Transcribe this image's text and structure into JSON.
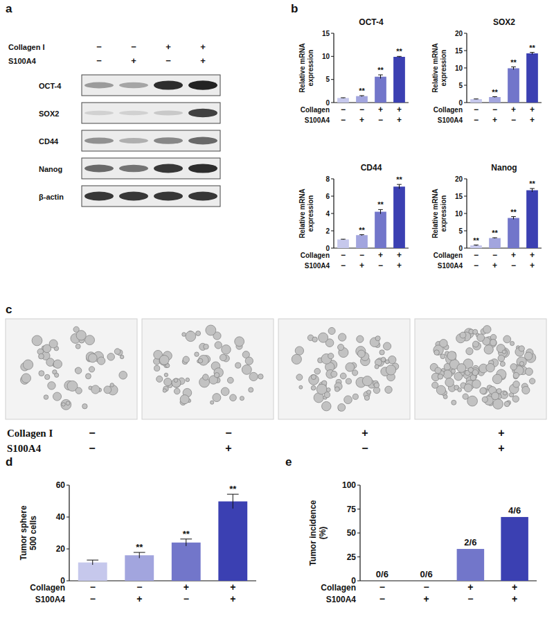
{
  "panel_labels": [
    "a",
    "b",
    "c",
    "d",
    "e"
  ],
  "blot": {
    "rows": [
      {
        "label": "Collagen I",
        "values": [
          "−",
          "−",
          "+",
          "+"
        ]
      },
      {
        "label": "S100A4",
        "values": [
          "−",
          "+",
          "−",
          "+"
        ]
      }
    ],
    "proteins": [
      "OCT-4",
      "SOX2",
      "CD44",
      "Nanog",
      "β-actin"
    ]
  },
  "images": {
    "rows": [
      {
        "label": "Collagen I",
        "values": [
          "−",
          "−",
          "+",
          "+"
        ]
      },
      {
        "label": "S100A4",
        "values": [
          "−",
          "+",
          "−",
          "+"
        ]
      }
    ]
  },
  "chart_data": [
    {
      "type": "bar",
      "title": "OCT-4",
      "y_label": "Relative mRNA expression",
      "categories": [
        null,
        null,
        null,
        null
      ],
      "values": [
        1.0,
        1.4,
        5.6,
        9.9
      ],
      "errors": [
        0.05,
        0.1,
        0.4,
        0.1
      ],
      "annotations": [
        null,
        "**",
        "**",
        "**"
      ],
      "x_rows": [
        {
          "label": "Collagen",
          "values": [
            "−",
            "−",
            "+",
            "+"
          ]
        },
        {
          "label": "S100A4",
          "values": [
            "−",
            "+",
            "−",
            "+"
          ]
        }
      ],
      "colors": [
        "#c6c8ec",
        "#a2a5de",
        "#7276ca",
        "#3b40b2"
      ],
      "ylim": [
        0,
        15
      ],
      "yticks": [
        0,
        5,
        10,
        15
      ]
    },
    {
      "type": "bar",
      "title": "SOX2",
      "y_label": "Relative mRNA expression",
      "categories": [
        null,
        null,
        null,
        null
      ],
      "values": [
        1.0,
        1.6,
        9.9,
        14.2
      ],
      "errors": [
        0.05,
        0.1,
        0.4,
        0.3
      ],
      "annotations": [
        null,
        "**",
        "**",
        "**"
      ],
      "x_rows": [
        {
          "label": "Collagen",
          "values": [
            "−",
            "−",
            "+",
            "+"
          ]
        },
        {
          "label": "S100A4",
          "values": [
            "−",
            "+",
            "−",
            "+"
          ]
        }
      ],
      "colors": [
        "#c6c8ec",
        "#a2a5de",
        "#7276ca",
        "#3b40b2"
      ],
      "ylim": [
        0,
        20
      ],
      "yticks": [
        0,
        5,
        10,
        15,
        20
      ]
    },
    {
      "type": "bar",
      "title": "CD44",
      "y_label": "Relative mRNA expression",
      "categories": [
        null,
        null,
        null,
        null
      ],
      "values": [
        1.0,
        1.5,
        4.2,
        7.1
      ],
      "errors": [
        0.03,
        0.05,
        0.25,
        0.25
      ],
      "annotations": [
        null,
        "**",
        "**",
        "**"
      ],
      "x_rows": [
        {
          "label": "Collagen",
          "values": [
            "−",
            "−",
            "+",
            "+"
          ]
        },
        {
          "label": "S100A4",
          "values": [
            "−",
            "+",
            "−",
            "+"
          ]
        }
      ],
      "colors": [
        "#c6c8ec",
        "#a2a5de",
        "#7276ca",
        "#3b40b2"
      ],
      "ylim": [
        0,
        8
      ],
      "yticks": [
        0,
        2,
        4,
        6,
        8
      ]
    },
    {
      "type": "bar",
      "title": "Nanog",
      "y_label": "Relative mRNA expression",
      "categories": [
        null,
        null,
        null,
        null
      ],
      "values": [
        0.8,
        2.9,
        8.7,
        16.7
      ],
      "errors": [
        0.1,
        0.1,
        0.4,
        0.5
      ],
      "annotations": [
        "**",
        "**",
        "**",
        "**"
      ],
      "x_rows": [
        {
          "label": "Collagen",
          "values": [
            "−",
            "−",
            "+",
            "+"
          ]
        },
        {
          "label": "S100A4",
          "values": [
            "−",
            "+",
            "−",
            "+"
          ]
        }
      ],
      "colors": [
        "#c6c8ec",
        "#a2a5de",
        "#7276ca",
        "#3b40b2"
      ],
      "ylim": [
        0,
        20
      ],
      "yticks": [
        0,
        5,
        10,
        15,
        20
      ]
    },
    {
      "type": "bar",
      "y_label": "Tumor sphere 500 cells",
      "categories": [
        null,
        null,
        null,
        null
      ],
      "values": [
        11.5,
        16,
        24,
        49.8
      ],
      "errors": [
        1.5,
        1.8,
        2.2,
        4.5
      ],
      "annotations": [
        null,
        "**",
        "**",
        "**"
      ],
      "x_rows": [
        {
          "label": "Collagen",
          "values": [
            "−",
            "−",
            "+",
            "+"
          ]
        },
        {
          "label": "S100A4",
          "values": [
            "−",
            "+",
            "−",
            "+"
          ]
        }
      ],
      "colors": [
        "#c6c8ec",
        "#a2a5de",
        "#7276ca",
        "#3b40b2"
      ],
      "ylim": [
        0,
        60
      ],
      "yticks": [
        0,
        20,
        40,
        60
      ]
    },
    {
      "type": "bar",
      "y_label": "Tumor incidence (%)",
      "categories": [
        null,
        null,
        null,
        null
      ],
      "values": [
        0,
        0,
        33.3,
        66.7
      ],
      "value_labels": [
        "0/6",
        "0/6",
        "2/6",
        "4/6"
      ],
      "data_labels": true,
      "x_rows": [
        {
          "label": "Collagen",
          "values": [
            "−",
            "−",
            "+",
            "+"
          ]
        },
        {
          "label": "S100A4",
          "values": [
            "−",
            "+",
            "−",
            "+"
          ]
        }
      ],
      "colors": [
        "#c6c8ec",
        "#a2a5de",
        "#7276ca",
        "#3b40b2"
      ],
      "ylim": [
        0,
        100
      ],
      "yticks": [
        0,
        25,
        50,
        75,
        100
      ]
    }
  ]
}
